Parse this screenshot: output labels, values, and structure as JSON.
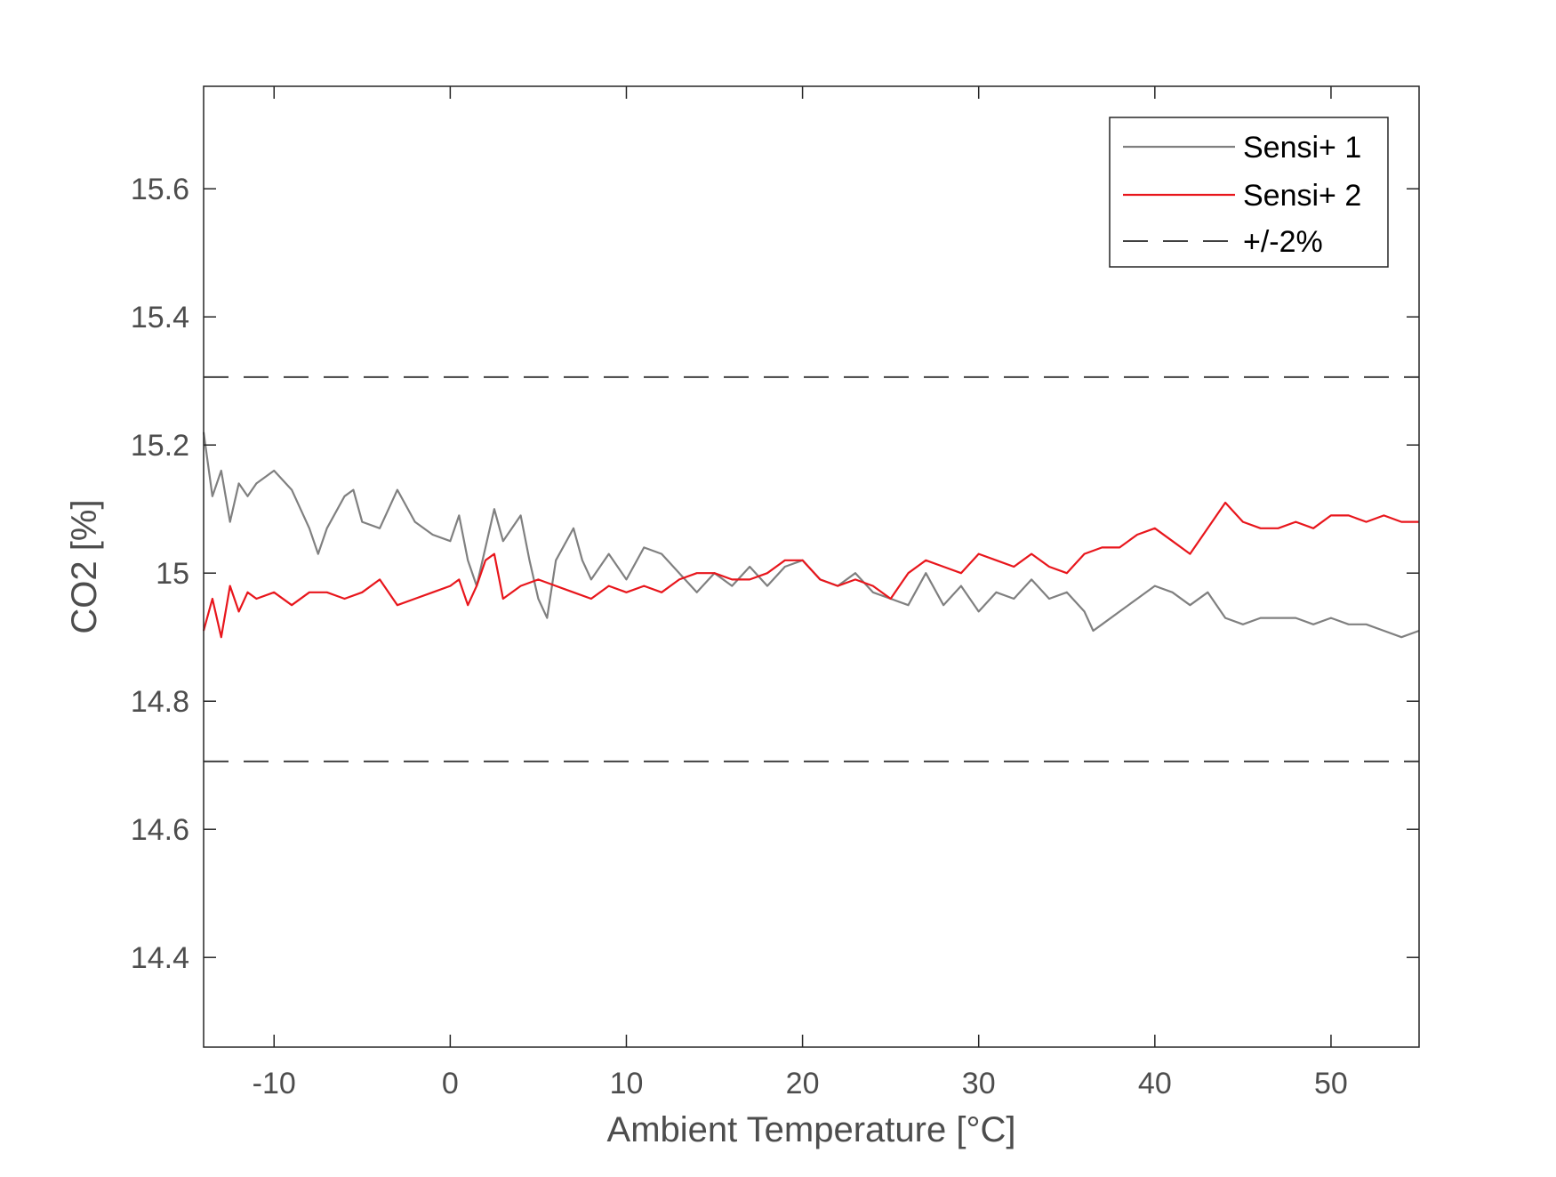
{
  "chart_data": {
    "type": "line",
    "xlabel": "Ambient Temperature [°C]",
    "ylabel": "CO2 [%]",
    "xlim": [
      -14,
      55
    ],
    "ylim": [
      14.26,
      15.76
    ],
    "xticks": [
      -10,
      0,
      10,
      20,
      30,
      40,
      50
    ],
    "yticks": [
      14.4,
      14.6,
      14.8,
      15,
      15.2,
      15.4,
      15.6
    ],
    "xtick_labels": [
      "-10",
      "0",
      "10",
      "20",
      "30",
      "40",
      "50"
    ],
    "ytick_labels": [
      "14.4",
      "14.6",
      "14.8",
      "15",
      "15.2",
      "15.4",
      "15.6"
    ],
    "grid": false,
    "legend_position": "top-right",
    "series": [
      {
        "name": "Sensi+ 1",
        "color": "#808080",
        "x": [
          -14,
          -13.5,
          -13,
          -12.5,
          -12,
          -11.5,
          -11,
          -10,
          -9,
          -8,
          -7.5,
          -7,
          -6,
          -5.5,
          -5,
          -4,
          -3,
          -2,
          -1,
          0,
          0.5,
          1,
          1.5,
          2,
          2.5,
          3,
          4,
          4.5,
          5,
          5.5,
          6,
          7,
          7.5,
          8,
          9,
          10,
          11,
          12,
          13,
          14,
          15,
          16,
          17,
          18,
          19,
          20,
          21,
          22,
          23,
          24,
          25,
          26,
          27,
          28,
          29,
          30,
          31,
          32,
          33,
          34,
          35,
          36,
          36.5,
          37,
          38,
          39,
          40,
          41,
          42,
          43,
          44,
          45,
          46,
          47,
          48,
          49,
          50,
          51,
          52,
          53,
          54,
          55
        ],
        "y": [
          15.22,
          15.12,
          15.16,
          15.08,
          15.14,
          15.12,
          15.14,
          15.16,
          15.13,
          15.07,
          15.03,
          15.07,
          15.12,
          15.13,
          15.08,
          15.07,
          15.13,
          15.08,
          15.06,
          15.05,
          15.09,
          15.02,
          14.98,
          15.04,
          15.1,
          15.05,
          15.09,
          15.02,
          14.96,
          14.93,
          15.02,
          15.07,
          15.02,
          14.99,
          15.03,
          14.99,
          15.04,
          15.03,
          15.0,
          14.97,
          15.0,
          14.98,
          15.01,
          14.98,
          15.01,
          15.02,
          14.99,
          14.98,
          15.0,
          14.97,
          14.96,
          14.95,
          15.0,
          14.95,
          14.98,
          14.94,
          14.97,
          14.96,
          14.99,
          14.96,
          14.97,
          14.94,
          14.91,
          14.92,
          14.94,
          14.96,
          14.98,
          14.97,
          14.95,
          14.97,
          14.93,
          14.92,
          14.93,
          14.93,
          14.93,
          14.92,
          14.93,
          14.92,
          14.92,
          14.91,
          14.9,
          14.91
        ]
      },
      {
        "name": "Sensi+ 2",
        "color": "#e8161c",
        "x": [
          -14,
          -13.5,
          -13,
          -12.5,
          -12,
          -11.5,
          -11,
          -10,
          -9,
          -8,
          -7,
          -6,
          -5,
          -4,
          -3,
          -2,
          -1,
          0,
          0.5,
          1,
          1.5,
          2,
          2.5,
          3,
          4,
          5,
          6,
          7,
          8,
          9,
          10,
          11,
          12,
          13,
          14,
          15,
          16,
          17,
          18,
          19,
          20,
          21,
          22,
          23,
          24,
          25,
          26,
          27,
          28,
          29,
          30,
          31,
          32,
          33,
          34,
          35,
          36,
          37,
          38,
          39,
          40,
          41,
          42,
          43,
          44,
          45,
          46,
          47,
          48,
          49,
          50,
          51,
          52,
          53,
          54,
          55
        ],
        "y": [
          14.91,
          14.96,
          14.9,
          14.98,
          14.94,
          14.97,
          14.96,
          14.97,
          14.95,
          14.97,
          14.97,
          14.96,
          14.97,
          14.99,
          14.95,
          14.96,
          14.97,
          14.98,
          14.99,
          14.95,
          14.98,
          15.02,
          15.03,
          14.96,
          14.98,
          14.99,
          14.98,
          14.97,
          14.96,
          14.98,
          14.97,
          14.98,
          14.97,
          14.99,
          15.0,
          15.0,
          14.99,
          14.99,
          15.0,
          15.02,
          15.02,
          14.99,
          14.98,
          14.99,
          14.98,
          14.96,
          15.0,
          15.02,
          15.01,
          15.0,
          15.03,
          15.02,
          15.01,
          15.03,
          15.01,
          15.0,
          15.03,
          15.04,
          15.04,
          15.06,
          15.07,
          15.05,
          15.03,
          15.07,
          15.11,
          15.08,
          15.07,
          15.07,
          15.08,
          15.07,
          15.09,
          15.09,
          15.08,
          15.09,
          15.08,
          15.08
        ]
      },
      {
        "name": "+/-2%",
        "color": "#404040",
        "style": "dashed",
        "upper": 15.306,
        "lower": 14.706
      }
    ]
  }
}
